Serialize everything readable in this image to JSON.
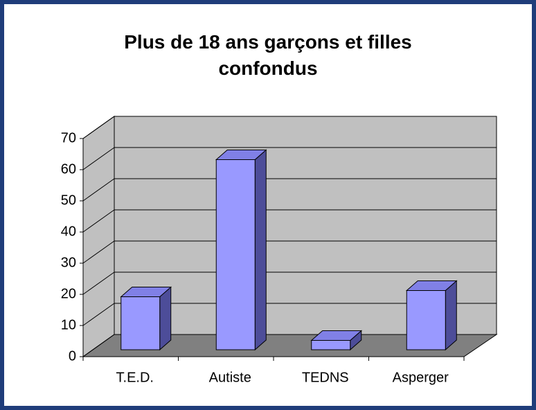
{
  "chart_data": {
    "type": "bar3d",
    "title": "Plus de 18 ans garçons et filles confondus",
    "categories": [
      "T.E.D.",
      "Autiste",
      "TEDNS",
      "Asperger"
    ],
    "values": [
      17,
      61,
      3,
      19
    ],
    "color": "#9999ff",
    "ylim": [
      0,
      70
    ],
    "yticks": [
      0,
      10,
      20,
      30,
      40,
      50,
      60,
      70
    ],
    "grid": true
  }
}
